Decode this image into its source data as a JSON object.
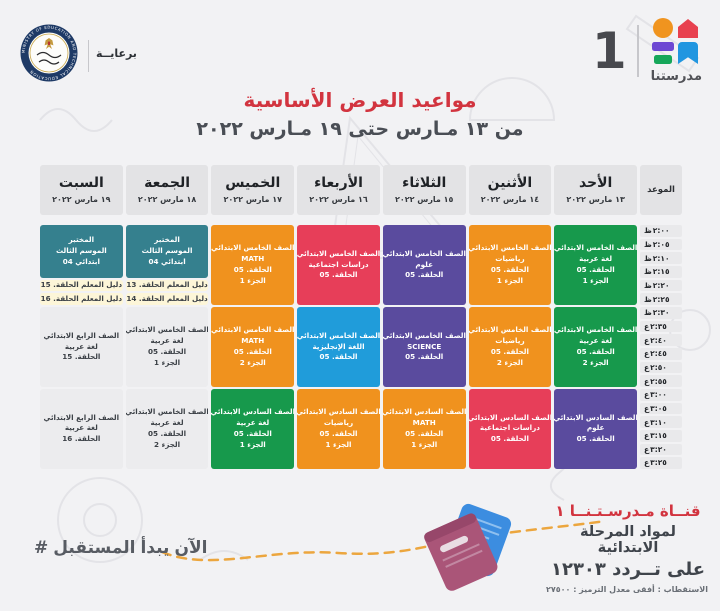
{
  "page": {
    "patronage_label": "برعايــة",
    "ministry_seal": {
      "ring_text": "MINISTRY OF EDUCATION AND TECHNICAL EDUCATION"
    },
    "channel_logo": {
      "number": "1",
      "name": "مدرستنا"
    },
    "title": "مواعيد العرض الأساسية",
    "subtitle": "من ١٣ مـارس حتى ١٩ مـارس ٢٠٢٢"
  },
  "block_colors": {
    "green": {
      "bg": "#17994c",
      "fg": "#ffffff"
    },
    "orange": {
      "bg": "#f0921e",
      "fg": "#ffffff"
    },
    "purple": {
      "bg": "#5a4b9e",
      "fg": "#ffffff"
    },
    "red": {
      "bg": "#e73e59",
      "fg": "#ffffff"
    },
    "blue": {
      "bg": "#209cda",
      "fg": "#ffffff"
    },
    "teal": {
      "bg": "#35808e",
      "fg": "#ffffff"
    },
    "yellow": {
      "bg": "#fdf6d8",
      "fg": "#3a3f45"
    },
    "gray": {
      "bg": "#ececee",
      "fg": "#3a3f45"
    }
  },
  "schedule": {
    "time_header": "الموعد",
    "times": [
      {
        "period": "ظ",
        "time": "٢:٠٠"
      },
      {
        "period": "ظ",
        "time": "٢:٠٥"
      },
      {
        "period": "ظ",
        "time": "٢:١٠"
      },
      {
        "period": "ظ",
        "time": "٢:١٥"
      },
      {
        "period": "ظ",
        "time": "٢:٢٠"
      },
      {
        "period": "ظ",
        "time": "٢:٢٥"
      },
      {
        "period": "ظ",
        "time": "٢:٣٠"
      },
      {
        "period": "ع",
        "time": "٢:٣٥"
      },
      {
        "period": "ع",
        "time": "٢:٤٠"
      },
      {
        "period": "ع",
        "time": "٢:٤٥"
      },
      {
        "period": "ع",
        "time": "٢:٥٠"
      },
      {
        "period": "ع",
        "time": "٢:٥٥"
      },
      {
        "period": "ع",
        "time": "٣:٠٠"
      },
      {
        "period": "ع",
        "time": "٣:٠٥"
      },
      {
        "period": "ع",
        "time": "٣:١٠"
      },
      {
        "period": "ع",
        "time": "٣:١٥"
      },
      {
        "period": "ع",
        "time": "٣:٢٠"
      },
      {
        "period": "ع",
        "time": "٣:٢٥"
      }
    ],
    "days": [
      {
        "name": "الأحد",
        "date": "١٣ مارس ٢٠٢٢",
        "blocks": [
          {
            "span": 6,
            "color": "green",
            "lines": [
              "الصف الخامس الابتدائي",
              "لغة عربية",
              "الحلقة. 05",
              "الجزء 1"
            ]
          },
          {
            "span": 6,
            "color": "green",
            "lines": [
              "الصف الخامس الابتدائي",
              "لغة عربية",
              "الحلقة. 05",
              "الجزء 2"
            ]
          },
          {
            "span": 6,
            "color": "purple",
            "lines": [
              "الصف السادس الابتدائي",
              "علوم",
              "الحلقة. 05"
            ]
          }
        ]
      },
      {
        "name": "الأثنين",
        "date": "١٤ مارس ٢٠٢٢",
        "blocks": [
          {
            "span": 6,
            "color": "orange",
            "lines": [
              "الصف الخامس الابتدائي",
              "رياضيات",
              "الحلقة. 05",
              "الجزء 1"
            ]
          },
          {
            "span": 6,
            "color": "orange",
            "lines": [
              "الصف الخامس الابتدائي",
              "رياضيات",
              "الحلقة. 05",
              "الجزء 2"
            ]
          },
          {
            "span": 6,
            "color": "red",
            "lines": [
              "الصف السادس الابتدائي",
              "دراسات اجتماعية",
              "الحلقة. 05"
            ]
          }
        ]
      },
      {
        "name": "الثلاثاء",
        "date": "١٥ مارس ٢٠٢٢",
        "blocks": [
          {
            "span": 6,
            "color": "purple",
            "lines": [
              "الصف الخامس الابتدائي",
              "علوم",
              "الحلقة. 05"
            ]
          },
          {
            "span": 6,
            "color": "purple",
            "lines": [
              "الصف الخامس الابتدائي",
              "SCIENCE",
              "الحلقة. 05"
            ]
          },
          {
            "span": 6,
            "color": "orange",
            "lines": [
              "الصف السادس الابتدائي",
              "MATH",
              "الحلقة. 05",
              "الجزء 1"
            ]
          }
        ]
      },
      {
        "name": "الأربعاء",
        "date": "١٦ مارس ٢٠٢٢",
        "blocks": [
          {
            "span": 6,
            "color": "red",
            "lines": [
              "الصف الخامس الابتدائي",
              "دراسات اجتماعية",
              "الحلقة. 05"
            ]
          },
          {
            "span": 6,
            "color": "blue",
            "lines": [
              "الصف الخامس الابتدائي",
              "اللغة الإنجليزية",
              "الحلقة. 05"
            ]
          },
          {
            "span": 6,
            "color": "orange",
            "lines": [
              "الصف السادس الابتدائي",
              "رياضيات",
              "الحلقة. 05",
              "الجزء 1"
            ]
          }
        ]
      },
      {
        "name": "الخميس",
        "date": "١٧ مارس ٢٠٢٢",
        "blocks": [
          {
            "span": 6,
            "color": "orange",
            "lines": [
              "الصف الخامس الابتدائي",
              "MATH",
              "الحلقة. 05",
              "الجزء 1"
            ]
          },
          {
            "span": 6,
            "color": "orange",
            "lines": [
              "الصف الخامس الابتدائي",
              "MATH",
              "الحلقة. 05",
              "الجزء 2"
            ]
          },
          {
            "span": 6,
            "color": "green",
            "lines": [
              "الصف السادس الابتدائي",
              "لغة عربية",
              "الحلقة. 05",
              "الجزء 1"
            ]
          }
        ]
      },
      {
        "name": "الجمعة",
        "date": "١٨ مارس ٢٠٢٢",
        "blocks": [
          {
            "span": 4,
            "color": "teal",
            "lines": [
              "المختبر",
              "الموسم الثالث",
              "ابتدائي 04"
            ]
          },
          {
            "span": 1,
            "color": "yellow",
            "lines": [
              "دليل المعلم الحلقة. 13"
            ]
          },
          {
            "span": 1,
            "color": "yellow",
            "lines": [
              "دليل المعلم الحلقة. 14"
            ]
          },
          {
            "span": 6,
            "color": "gray",
            "lines": [
              "الصف الخامس الابتدائي",
              "لغة عربية",
              "الحلقة. 05",
              "الجزء 1"
            ]
          },
          {
            "span": 6,
            "color": "gray",
            "lines": [
              "الصف الخامس الابتدائي",
              "لغة عربية",
              "الحلقة. 05",
              "الجزء 2"
            ]
          }
        ]
      },
      {
        "name": "السبت",
        "date": "١٩ مارس ٢٠٢٢",
        "blocks": [
          {
            "span": 4,
            "color": "teal",
            "lines": [
              "المختبر",
              "الموسم الثالث",
              "ابتدائي 04"
            ]
          },
          {
            "span": 1,
            "color": "yellow",
            "lines": [
              "دليل المعلم الحلقة. 15"
            ]
          },
          {
            "span": 1,
            "color": "yellow",
            "lines": [
              "دليل المعلم الحلقة. 16"
            ]
          },
          {
            "span": 6,
            "color": "gray",
            "lines": [
              "الصف الرابع الابتدائي",
              "لغة عربية",
              "الحلقة. 15"
            ]
          },
          {
            "span": 6,
            "color": "gray",
            "lines": [
              "الصف الرابع الابتدائي",
              "لغة عربية",
              "الحلقة. 16"
            ]
          }
        ]
      }
    ]
  },
  "footer": {
    "hashtag": "# المستقبل يبدأ الآن",
    "channel_line1": "قنــاة مـدرسـتـنــا ١",
    "channel_line2": "لمواد المرحلة الابتدائية",
    "channel_line3": "على تــردد ١٢٣٠٣",
    "channel_line4": "الاستقطاب : أفقى معدل الترميز : ٢٧٥٠٠",
    "accent_dash_color": "#eca63e"
  }
}
